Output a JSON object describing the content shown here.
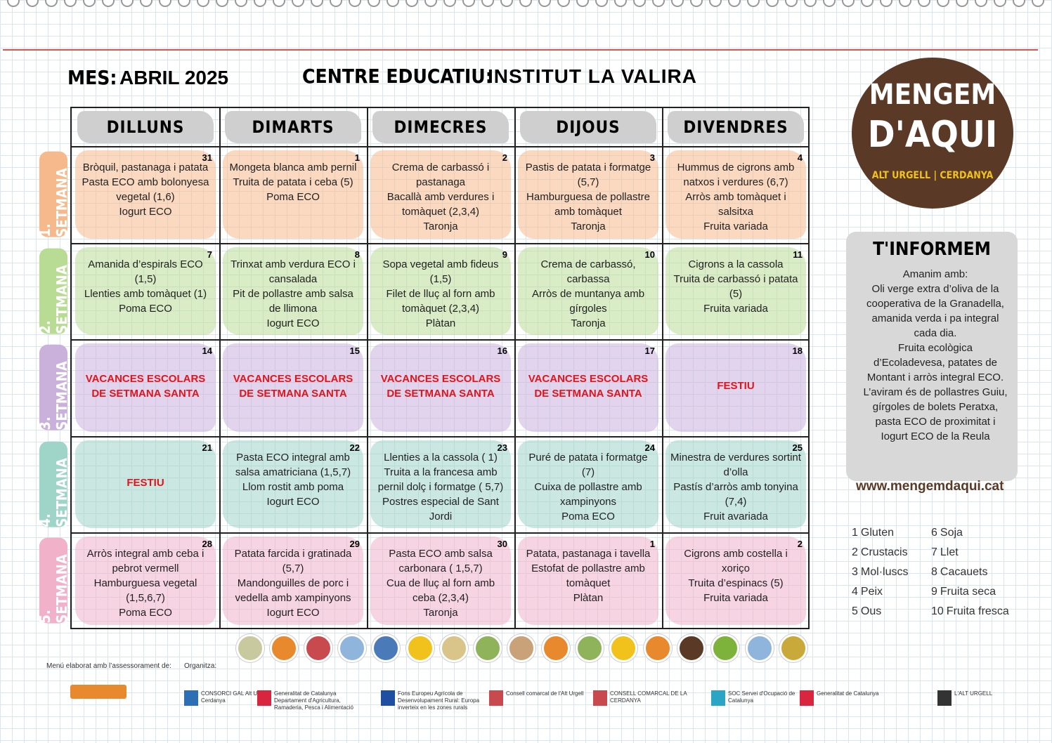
{
  "header": {
    "month_label": "MES:",
    "month": "ABRIL 2025",
    "centre_label": "CENTRE EDUCATIU:",
    "centre": "INSTITUT LA VALIRA"
  },
  "days": [
    "DILLUNS",
    "DIMARTS",
    "DIMECRES",
    "DIJOUS",
    "DIVENDRES"
  ],
  "weeks": [
    {
      "label": "1. SETMANA",
      "color": "#f6b98c",
      "cells": [
        {
          "date": 31,
          "items": [
            "Bròquil, pastanaga i patata",
            "Pasta ECO amb bolonyesa vegetal (1,6)",
            "Iogurt ECO"
          ]
        },
        {
          "date": 1,
          "items": [
            "Mongeta blanca amb pernil",
            "Truita de patata i ceba (5)",
            "Poma ECO"
          ]
        },
        {
          "date": 2,
          "items": [
            "Crema de carbassó i pastanaga",
            "Bacallà amb verdures  i tomàquet (2,3,4)",
            "Taronja"
          ]
        },
        {
          "date": 3,
          "items": [
            "Pastis de patata i formatge (5,7)",
            "Hamburguesa de pollastre amb tomàquet",
            "Taronja"
          ]
        },
        {
          "date": 4,
          "items": [
            "Hummus de cigrons amb natxos i verdures (6,7)",
            "Arròs amb tomàquet i salsitxa",
            "Fruita variada"
          ]
        }
      ]
    },
    {
      "label": "2. SETMANA",
      "color": "#b9dc95",
      "cells": [
        {
          "date": 7,
          "items": [
            "Amanida d’espirals ECO (1,5)",
            "Llenties amb tomàquet (1)",
            "Poma ECO"
          ]
        },
        {
          "date": 8,
          "items": [
            "Trinxat amb verdura ECO i cansalada",
            "Pit de pollastre amb salsa de llimona",
            "Iogurt ECO"
          ]
        },
        {
          "date": 9,
          "items": [
            "Sopa vegetal amb fideus (1,5)",
            "Filet de lluç al forn amb tomàquet (2,3,4)",
            "Plàtan"
          ]
        },
        {
          "date": 10,
          "items": [
            "Crema de carbassó, carbassa",
            "Arròs de muntanya amb gírgoles",
            "Taronja"
          ]
        },
        {
          "date": 11,
          "items": [
            "Cigrons a la cassola",
            "Truita de carbassó i patata (5)",
            "Fruita variada"
          ]
        }
      ]
    },
    {
      "label": "3. SETMANA",
      "color": "#c9b1dc",
      "cells": [
        {
          "date": 14,
          "holiday": true,
          "items": [
            "VACANCES ESCOLARS DE SETMANA SANTA"
          ]
        },
        {
          "date": 15,
          "holiday": true,
          "items": [
            "VACANCES ESCOLARS DE SETMANA SANTA"
          ]
        },
        {
          "date": 16,
          "holiday": true,
          "items": [
            "VACANCES ESCOLARS DE SETMANA SANTA"
          ]
        },
        {
          "date": 17,
          "holiday": true,
          "items": [
            "VACANCES ESCOLARS DE SETMANA SANTA"
          ]
        },
        {
          "date": 18,
          "holiday": true,
          "items": [
            "FESTIU"
          ]
        }
      ]
    },
    {
      "label": "4. SETMANA",
      "color": "#9fd4c8",
      "cells": [
        {
          "date": 21,
          "holiday": true,
          "items": [
            "FESTIU"
          ]
        },
        {
          "date": 22,
          "items": [
            "Pasta ECO integral amb salsa amatriciana (1,5,7)",
            "Llom rostit amb poma",
            "Iogurt ECO"
          ]
        },
        {
          "date": 23,
          "items": [
            "Llenties a la cassola ( 1)",
            "Truita a la francesa amb pernil dolç i formatge ( 5,7)",
            "Postres especial de Sant Jordi"
          ]
        },
        {
          "date": 24,
          "items": [
            "Puré de patata i formatge (7)",
            "Cuixa de pollastre amb xampinyons",
            "Poma ECO"
          ]
        },
        {
          "date": 25,
          "items": [
            "Minestra de verdures sortint d’olla",
            "Pastís d’arròs amb tonyina (7,4)",
            "Fruit avariada"
          ]
        }
      ]
    },
    {
      "label": "5. SETMANA",
      "color": "#f0b1c9",
      "cells": [
        {
          "date": 28,
          "items": [
            "Arròs integral amb ceba i pebrot vermell",
            "Hamburguesa vegetal (1,5,6,7)",
            "Poma ECO"
          ]
        },
        {
          "date": 29,
          "items": [
            "Patata farcida i gratinada (5,7)",
            "Mandonguilles de porc i vedella amb xampinyons",
            "Iogurt ECO"
          ]
        },
        {
          "date": 30,
          "items": [
            "Pasta ECO amb salsa carbonara ( 1,5,7)",
            "Cua de lluç al forn amb ceba (2,3,4)",
            "Taronja"
          ]
        },
        {
          "date": 1,
          "items": [
            "Patata, pastanaga i tavella",
            "Estofat de pollastre amb tomàquet",
            "Plàtan"
          ]
        },
        {
          "date": 2,
          "items": [
            "Cigrons amb costella i xoriço",
            "Truita d’espinacs (5)",
            "Fruita variada"
          ]
        }
      ]
    }
  ],
  "logo": {
    "line1": "MENGEM",
    "line2": "D'AQUI",
    "tagline": "ALT URGELL | CERDANYA"
  },
  "info": {
    "title": "T'INFORMEM",
    "paragraphs": [
      "Amanim amb:",
      "Oli verge extra d’oliva de la cooperativa de la Granadella, amanida verda i pa integral cada dia.",
      "Fruita ecològica d’Ecoladevesa, patates de Montant i arròs integral ECO.",
      "L’aviram és de pollastres Guiu, gírgoles de bolets Peratxa, pasta ECO de proximitat i  Iogurt ECO de la Reula"
    ],
    "url": "www.mengemdaqui.cat"
  },
  "allergens": [
    {
      "num": "1",
      "name": "Gluten"
    },
    {
      "num": "2",
      "name": "Crustacis"
    },
    {
      "num": "3",
      "name": "Mol·luscs"
    },
    {
      "num": "4",
      "name": "Peix"
    },
    {
      "num": "5",
      "name": "Ous"
    },
    {
      "num": "6",
      "name": "Soja"
    },
    {
      "num": "7",
      "name": "Llet"
    },
    {
      "num": "8",
      "name": "Cacauets"
    },
    {
      "num": "9",
      "name": "Fruita seca"
    },
    {
      "num": "10",
      "name": "Fruita fresca"
    }
  ],
  "footer": {
    "advice": "Menú elaborat amb l’assessorament de:",
    "organizer": "Organitza:",
    "sponsors": [
      "CONSORCI GAL Alt Urgell - Cerdanya",
      "Generalitat de Catalunya Departament d'Agricultura, Ramaderia, Pesca i Alimentació",
      "Fons Europeu Agrícola de Desenvolupament Rural: Europa inverteix en les zones rurals",
      "Consell comarcal de l'Alt Urgell",
      "CONSELL COMARCAL DE LA CERDANYA",
      "SOC Servei d'Ocupació de Catalunya",
      "Generalitat de Catalunya",
      "L'ALT URGELL"
    ]
  }
}
